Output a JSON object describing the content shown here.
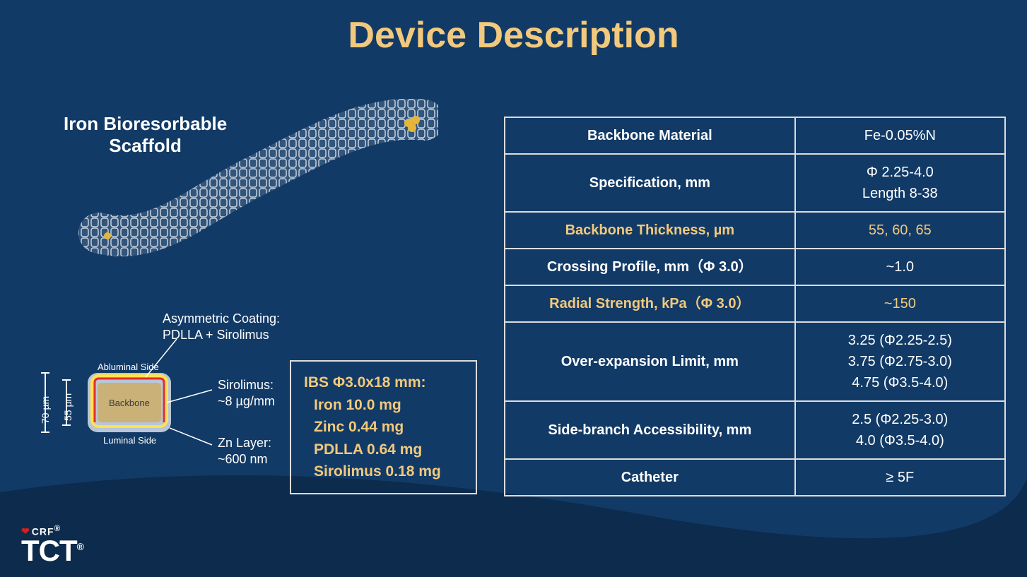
{
  "title": "Device Description",
  "colors": {
    "background": "#123a66",
    "accent": "#f2c97d",
    "text": "#ffffff",
    "border": "#dcdcdc",
    "backbone_fill": "#c9b178",
    "zn_layer": "#b8c6d8",
    "sirolimus_line": "#ffe34d",
    "coating_line": "#e23030"
  },
  "scaffold": {
    "label_line1": "Iron Bioresorbable",
    "label_line2": "Scaffold"
  },
  "cross_section": {
    "abluminal_label": "Abluminal Side",
    "luminal_label": "Luminal Side",
    "backbone_label": "Backbone",
    "dim_outer": "70 µm",
    "dim_inner": "55 µm",
    "callouts": {
      "coating_l1": "Asymmetric Coating:",
      "coating_l2": "PDLLA + Sirolimus",
      "sirolimus_l1": "Sirolimus:",
      "sirolimus_l2": "~8 µg/mm",
      "zn_l1": "Zn Layer:",
      "zn_l2": "~600 nm"
    }
  },
  "composition": {
    "header": "IBS Φ3.0x18 mm:",
    "lines": [
      "Iron 10.0 mg",
      "Zinc 0.44 mg",
      "PDLLA 0.64 mg",
      "Sirolimus 0.18 mg"
    ]
  },
  "table": {
    "rows": [
      {
        "param": "Backbone Material",
        "value": "Fe-0.05%N",
        "highlight": false
      },
      {
        "param": "Specification, mm",
        "value": "Φ  2.25-4.0\nLength 8-38",
        "highlight": false
      },
      {
        "param": "Backbone Thickness, µm",
        "value": "55, 60, 65",
        "highlight": true
      },
      {
        "param": "Crossing Profile, mm（Φ 3.0）",
        "value": "~1.0",
        "highlight": false
      },
      {
        "param": "Radial Strength, kPa（Φ 3.0）",
        "value": "~150",
        "highlight": true
      },
      {
        "param": "Over-expansion Limit, mm",
        "value": "3.25  (Φ2.25-2.5)\n3.75  (Φ2.75-3.0)\n4.75  (Φ3.5-4.0)",
        "highlight": false
      },
      {
        "param": "Side-branch Accessibility, mm",
        "value": "2.5  (Φ2.25-3.0)\n4.0  (Φ3.5-4.0)",
        "highlight": false
      },
      {
        "param": "Catheter",
        "value": "≥ 5F",
        "highlight": false
      }
    ]
  },
  "footer": {
    "crf": "CRF",
    "tct": "TCT",
    "reg": "®"
  }
}
